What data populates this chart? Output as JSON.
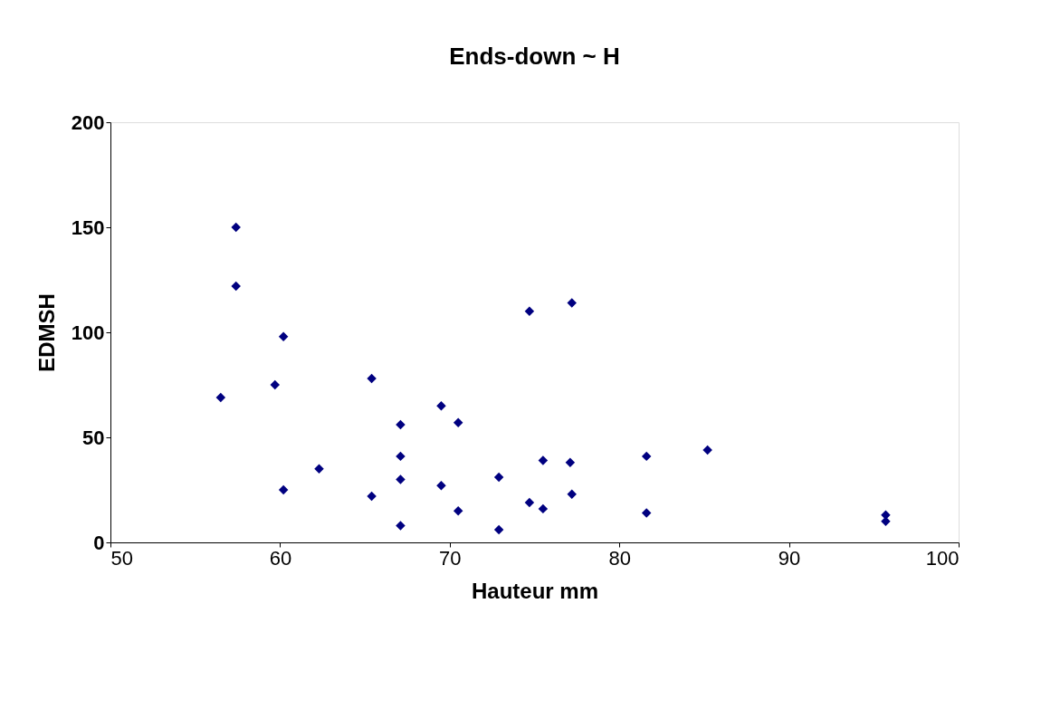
{
  "chart_data": {
    "type": "scatter",
    "title": "Ends-down ~ H",
    "xlabel": "Hauteur mm",
    "ylabel": "EDMSH",
    "x": [
      56.5,
      57.4,
      57.4,
      60.2,
      59.7,
      60.2,
      62.3,
      65.4,
      65.4,
      67.1,
      67.1,
      67.1,
      67.1,
      69.5,
      69.5,
      70.5,
      70.5,
      72.9,
      72.9,
      74.7,
      74.7,
      75.5,
      75.5,
      77.2,
      77.1,
      77.2,
      81.6,
      81.6,
      85.2,
      95.7,
      95.7
    ],
    "series": [
      {
        "color": "#000080",
        "values": [
          69,
          150,
          122,
          98,
          75,
          25,
          35,
          78,
          22,
          56,
          41,
          30,
          8,
          65,
          27,
          57,
          15,
          31,
          6,
          110,
          19,
          39,
          16,
          114,
          38,
          23,
          41,
          14,
          44,
          13,
          10
        ]
      }
    ],
    "xlim": [
      50,
      100
    ],
    "xticks": [
      50,
      60,
      70,
      80,
      90,
      100
    ],
    "ylim": [
      0,
      200
    ],
    "yticks": [
      0,
      50,
      100,
      150,
      200
    ],
    "grid": false,
    "legend": false,
    "marker": "diamond"
  }
}
